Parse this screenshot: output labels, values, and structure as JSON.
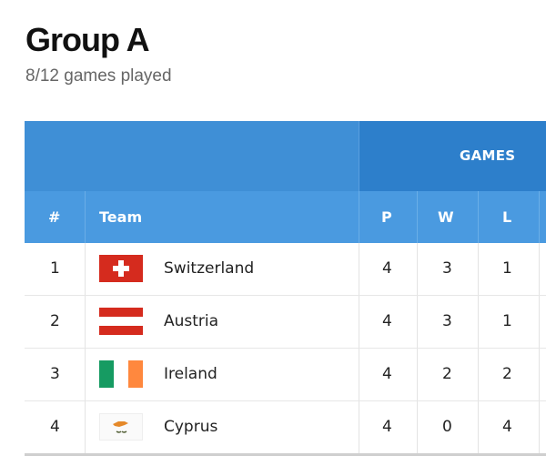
{
  "page": {
    "title": "Group A",
    "subtitle": "8/12 games played"
  },
  "table": {
    "group_header": "GAMES",
    "columns": {
      "rank": "#",
      "team": "Team",
      "played": "P",
      "won": "W",
      "lost": "L"
    },
    "rows": [
      {
        "rank": "1",
        "team": "Switzerland",
        "flag": "switzerland-flag-icon",
        "played": "4",
        "won": "3",
        "lost": "1"
      },
      {
        "rank": "2",
        "team": "Austria",
        "flag": "austria-flag-icon",
        "played": "4",
        "won": "3",
        "lost": "1"
      },
      {
        "rank": "3",
        "team": "Ireland",
        "flag": "ireland-flag-icon",
        "played": "4",
        "won": "2",
        "lost": "2"
      },
      {
        "rank": "4",
        "team": "Cyprus",
        "flag": "cyprus-flag-icon",
        "played": "4",
        "won": "0",
        "lost": "4"
      }
    ]
  },
  "colors": {
    "header_blue": "#3f8fd6",
    "header_dark_blue": "#2d7fcb",
    "column_header_blue": "#4a9ae0",
    "flag_red": "#d52b1e",
    "ireland_green": "#169b62",
    "ireland_orange": "#ff883e",
    "cyprus_copper": "#e5892a",
    "cyprus_olive": "#4e5b31"
  }
}
